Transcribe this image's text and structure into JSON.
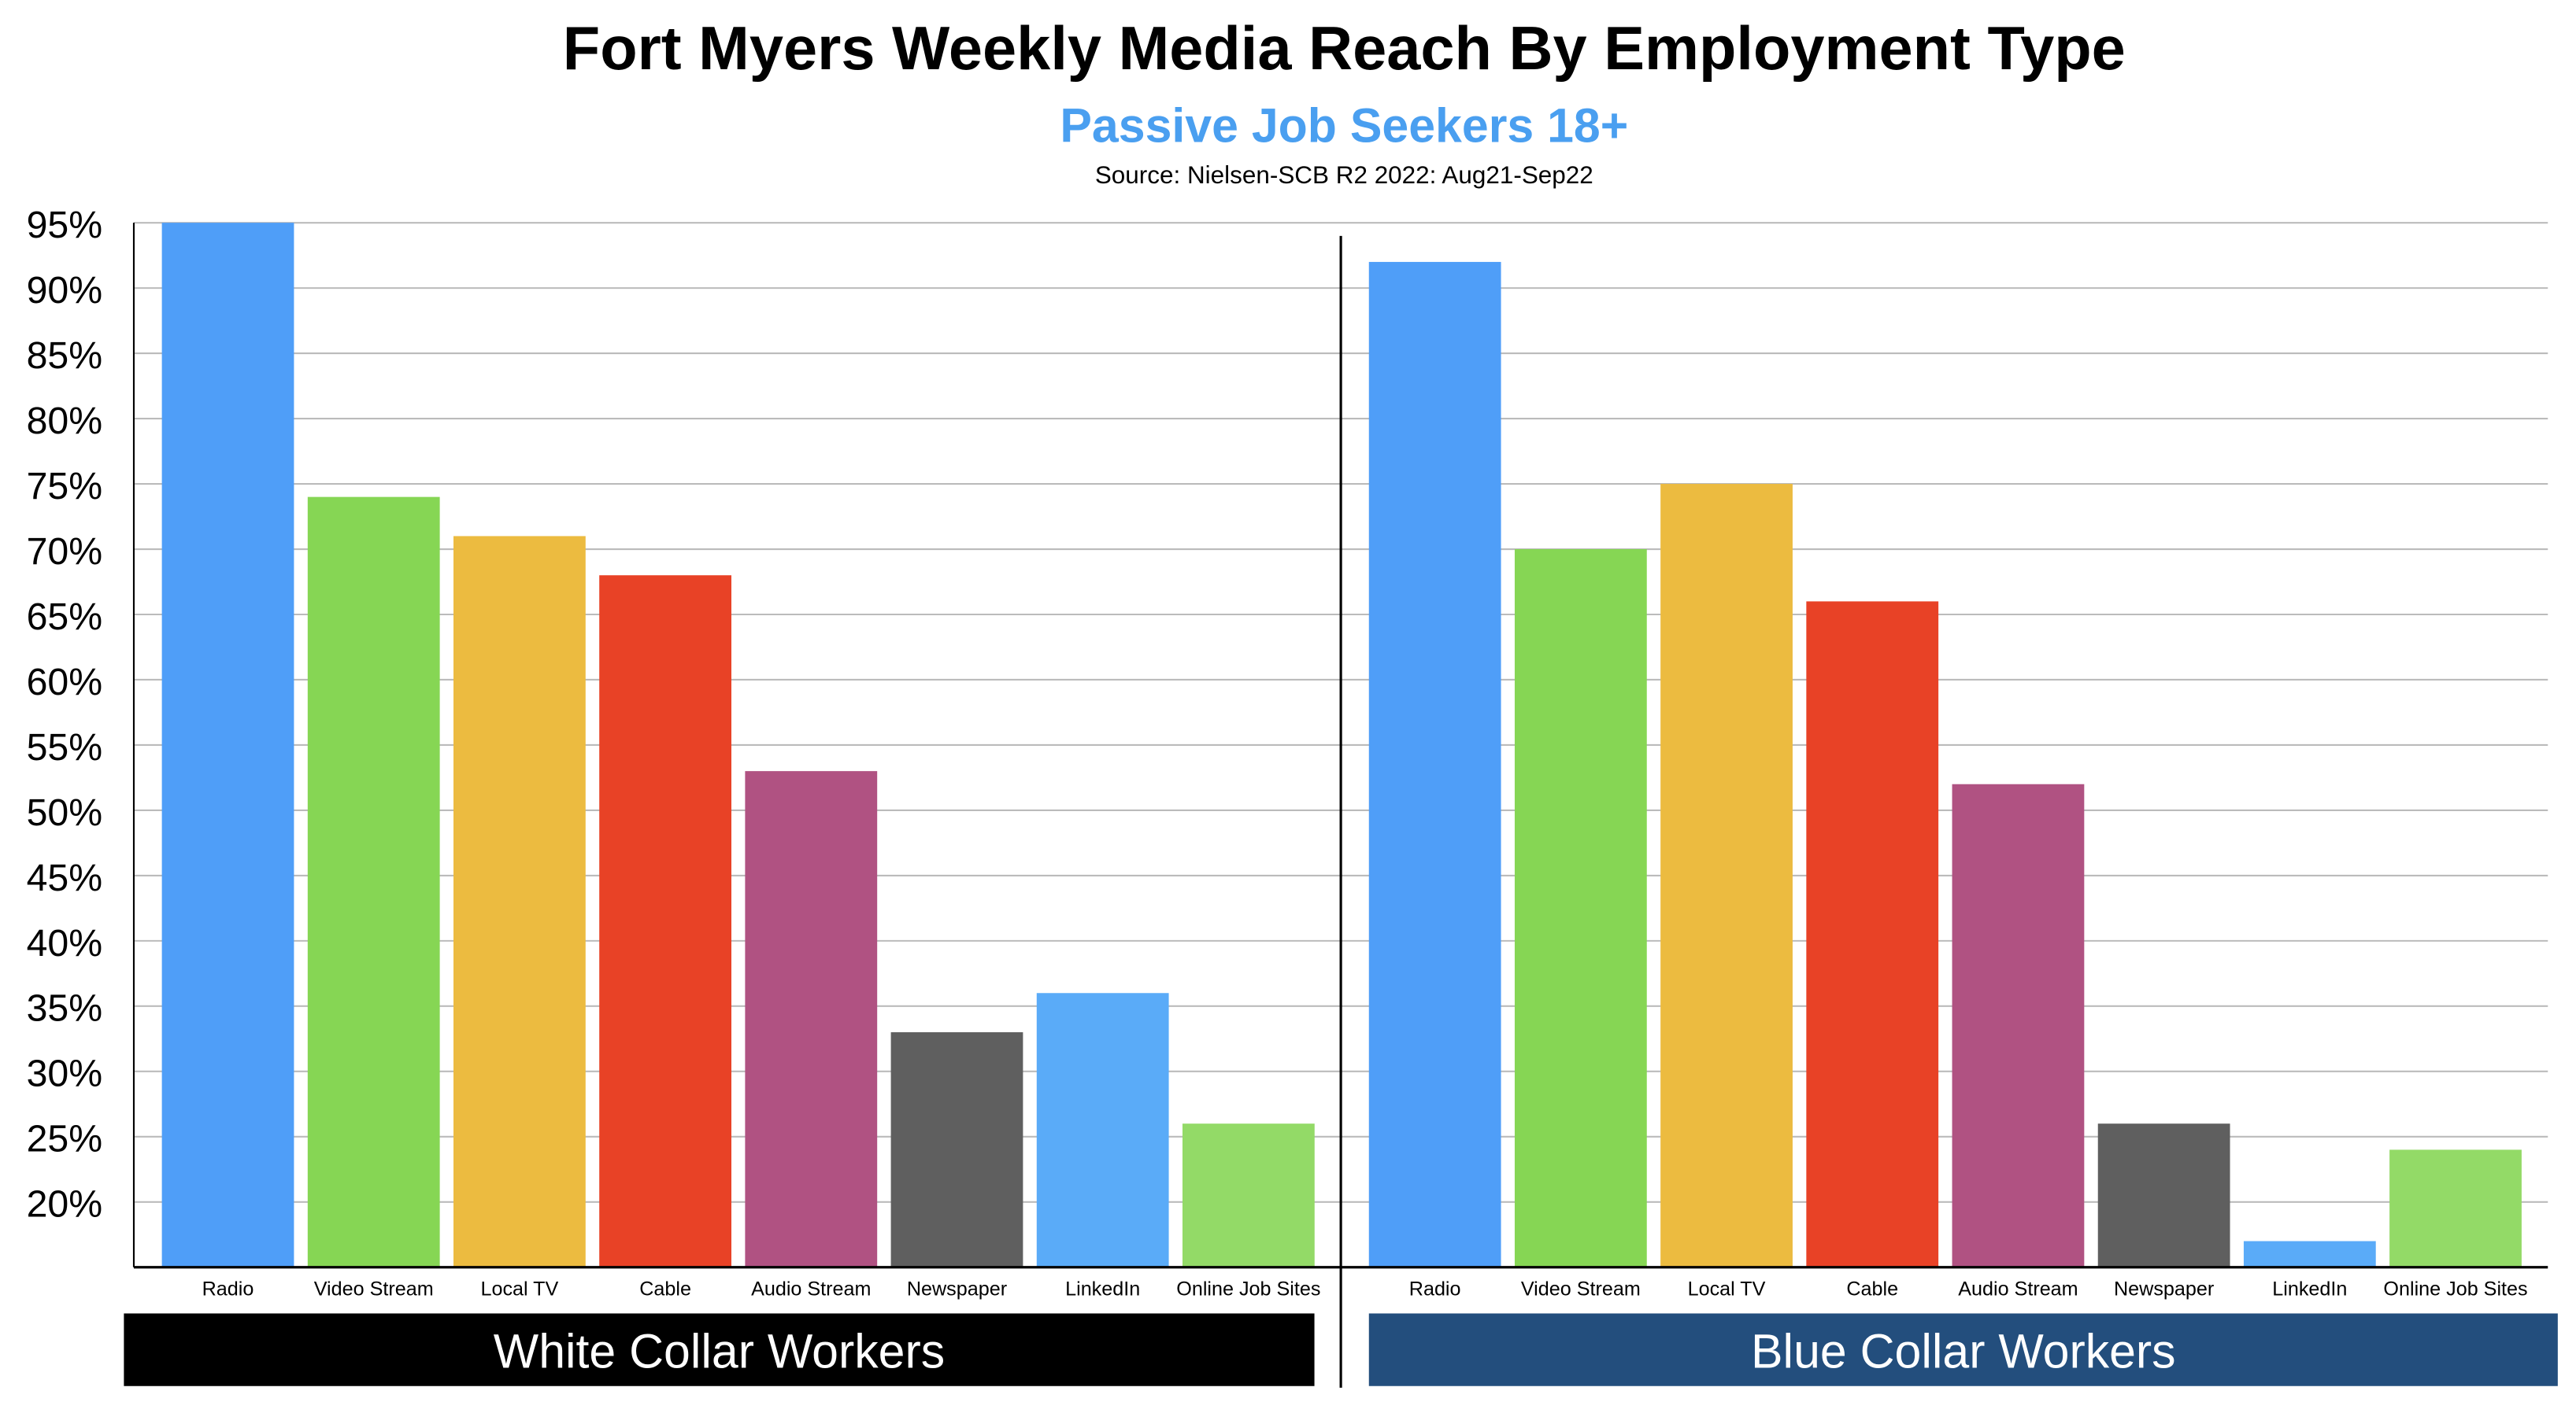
{
  "chart_data": {
    "type": "bar",
    "title": "Fort Myers Weekly Media Reach By Employment Type",
    "subtitle": "Passive Job Seekers 18+",
    "source": "Source: Nielsen-SCB R2 2022: Aug21-Sep22",
    "ylim": [
      15,
      95
    ],
    "yticks": [
      20,
      25,
      30,
      35,
      40,
      45,
      50,
      55,
      60,
      65,
      70,
      75,
      80,
      85,
      90,
      95
    ],
    "ytick_suffix": "%",
    "grid": true,
    "categories": [
      "Radio",
      "Video Stream",
      "Local TV",
      "Cable",
      "Audio Stream",
      "Newspaper",
      "LinkedIn",
      "Online Job Sites"
    ],
    "colors": [
      "#4f9ef8",
      "#86d654",
      "#ecbb40",
      "#e84226",
      "#b05282",
      "#5f5f5f",
      "#5aabf8",
      "#93da67"
    ],
    "series": [
      {
        "name": "White Collar Workers",
        "values": [
          95,
          74,
          71,
          68,
          53,
          33,
          36,
          26
        ],
        "banner_color": "#000000"
      },
      {
        "name": "Blue Collar Workers",
        "values": [
          92,
          70,
          75,
          66,
          52,
          26,
          17,
          24
        ],
        "banner_color": "#234e7d"
      }
    ],
    "subtitle_color": "#4a9ff0"
  }
}
